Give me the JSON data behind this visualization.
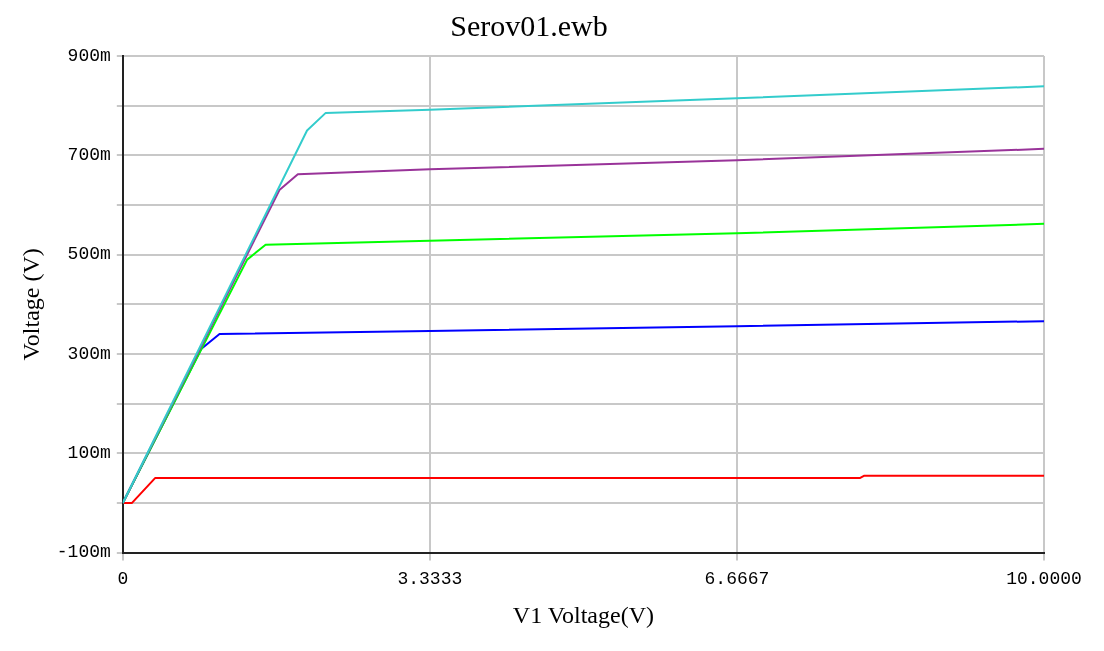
{
  "chart_data": {
    "type": "line",
    "title": "Serov01.ewb",
    "xlabel": "V1 Voltage(V)",
    "ylabel": "Voltage (V)",
    "xlim": [
      0,
      10
    ],
    "xticks": [
      0,
      3.3333,
      6.6667,
      {
        "value": 10,
        "label": "10.0000"
      }
    ],
    "ylim": [
      -100,
      900
    ],
    "yticks": [
      {
        "value": -100,
        "label": "-100m"
      },
      {
        "value": 0,
        "label": null
      },
      {
        "value": 100,
        "label": "100m"
      },
      {
        "value": 200,
        "label": null
      },
      {
        "value": 300,
        "label": "300m"
      },
      {
        "value": 400,
        "label": null
      },
      {
        "value": 500,
        "label": "500m"
      },
      {
        "value": 600,
        "label": null
      },
      {
        "value": 700,
        "label": "700m"
      },
      {
        "value": 800,
        "label": null
      },
      {
        "value": 900,
        "label": "900m"
      }
    ],
    "grid": true,
    "legend": false,
    "marker": "none",
    "line_style": "solid",
    "series": [
      {
        "color": "#33cccc",
        "x": [
          0,
          2.0,
          2.2,
          3.3333,
          6.6667,
          10
        ],
        "values": [
          0,
          750,
          785,
          792,
          815,
          839
        ]
      },
      {
        "color": "#993399",
        "x": [
          0,
          1.7,
          1.9,
          3.3333,
          6.6667,
          10
        ],
        "values": [
          0,
          630,
          662,
          672,
          690,
          713
        ]
      },
      {
        "color": "#00ff00",
        "x": [
          0,
          1.35,
          1.55,
          3.3333,
          6.6667,
          10
        ],
        "values": [
          0,
          490,
          520,
          528,
          543,
          562
        ]
      },
      {
        "color": "#0000ff",
        "x": [
          0,
          0.85,
          1.05,
          3.3333,
          6.6667,
          10
        ],
        "values": [
          0,
          310,
          340,
          346,
          356,
          366
        ]
      },
      {
        "color": "#ff0000",
        "x": [
          0,
          0.1,
          0.35,
          8,
          8.05,
          10
        ],
        "values": [
          0,
          0,
          50,
          50,
          55,
          55
        ]
      }
    ]
  }
}
